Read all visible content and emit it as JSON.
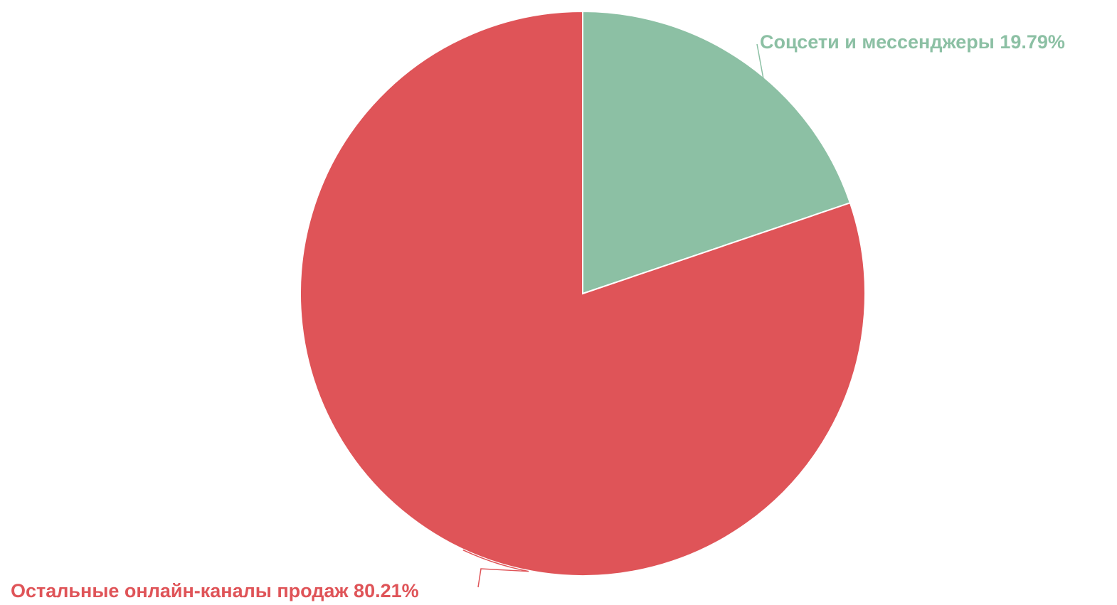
{
  "chart_data": {
    "type": "pie",
    "slices": [
      {
        "label": "Соцсети и мессенджеры 19.79%",
        "value": 19.79,
        "color": "#8cc0a4"
      },
      {
        "label": "Остальные онлайн-каналы продаж 80.21%",
        "value": 80.21,
        "color": "#df5458"
      }
    ],
    "start_angle_deg": 0,
    "direction": "clockwise",
    "legend": "none"
  }
}
